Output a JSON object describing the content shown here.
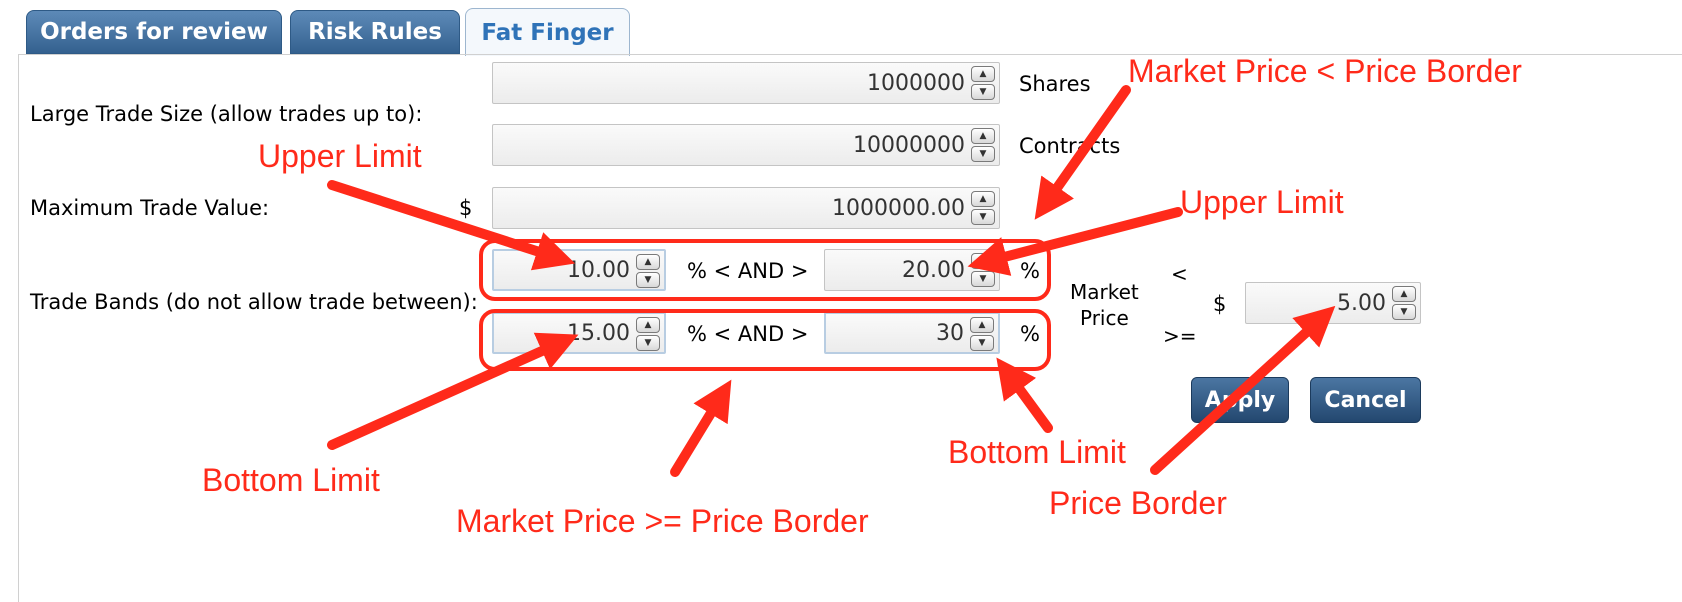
{
  "tabs": [
    {
      "label": "Orders for review",
      "active": false
    },
    {
      "label": "Risk Rules",
      "active": false
    },
    {
      "label": "Fat Finger",
      "active": true
    }
  ],
  "form": {
    "large_trade_label": "Large Trade Size (allow trades up to):",
    "shares_value": "1000000",
    "shares_unit": "Shares",
    "contracts_value": "10000000",
    "contracts_unit": "Contracts",
    "max_value_label": "Maximum Trade Value:",
    "currency": "$",
    "max_value": "1000000.00",
    "trade_bands_label": "Trade Bands (do not allow trade between):",
    "band_connector": "% < AND >",
    "percent": "%",
    "band1_lower": "10.00",
    "band1_upper": "20.00",
    "band2_lower": "15.00",
    "band2_upper": "30",
    "market_price_label_1": "Market",
    "market_price_label_2": "Price",
    "lt_symbol": "<",
    "gte_symbol": ">=",
    "price_border_value": "5.00"
  },
  "buttons": {
    "apply": "Apply",
    "cancel": "Cancel"
  },
  "annotations": {
    "market_lt": "Market Price < Price Border",
    "upper_left": "Upper Limit",
    "upper_right": "Upper Limit",
    "bottom_left": "Bottom Limit",
    "bottom_right": "Bottom Limit",
    "market_gte": "Market Price >= Price Border",
    "price_border": "Price Border"
  },
  "colors": {
    "annotation": "#ff2a1a",
    "tab_active_text": "#2f73b8",
    "button": "#2d5580"
  }
}
